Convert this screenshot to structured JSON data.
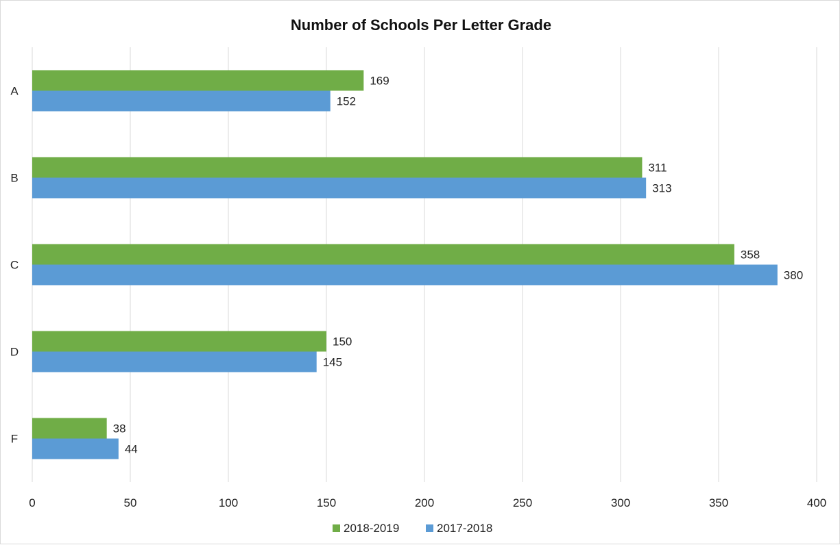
{
  "chart_data": {
    "type": "bar",
    "orientation": "horizontal",
    "title": "Number of Schools Per Letter Grade",
    "xlabel": "",
    "ylabel": "",
    "categories": [
      "A",
      "B",
      "C",
      "D",
      "F"
    ],
    "series": [
      {
        "name": "2018-2019",
        "color": "#70ad47",
        "values": [
          169,
          311,
          358,
          150,
          38
        ]
      },
      {
        "name": "2017-2018",
        "color": "#5b9bd5",
        "values": [
          152,
          313,
          380,
          145,
          44
        ]
      }
    ],
    "xlim": [
      0,
      400
    ],
    "xticks": [
      0,
      50,
      100,
      150,
      200,
      250,
      300,
      350,
      400
    ],
    "grid": "vertical",
    "legend": "bottom",
    "data_labels": true
  }
}
